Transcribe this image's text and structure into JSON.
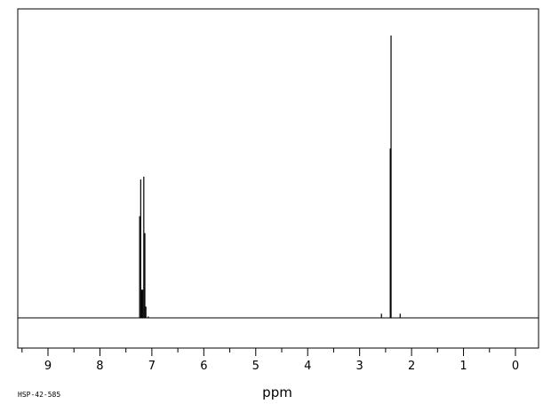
{
  "chart_data": {
    "type": "line",
    "title": "",
    "xlabel": "ppm",
    "ylabel": "",
    "xlim": [
      9.6,
      -0.45
    ],
    "ylim": [
      0,
      100
    ],
    "x_reversed": true,
    "grid": false,
    "ticks": [
      9,
      8,
      7,
      6,
      5,
      4,
      3,
      2,
      1,
      0
    ],
    "tick_labels": [
      "9",
      "8",
      "7",
      "6",
      "5",
      "4",
      "3",
      "2",
      "1",
      "0"
    ],
    "minor_ticks": [
      9.5,
      8.5,
      7.5,
      6.5,
      5.5,
      4.5,
      3.5,
      2.5,
      1.5,
      0.5,
      -0.5
    ],
    "peaks": [
      {
        "shift": 7.235,
        "intensity": 36
      },
      {
        "shift": 7.215,
        "intensity": 49
      },
      {
        "shift": 7.195,
        "intensity": 10
      },
      {
        "shift": 7.175,
        "intensity": 10
      },
      {
        "shift": 7.155,
        "intensity": 50
      },
      {
        "shift": 7.135,
        "intensity": 30
      },
      {
        "shift": 7.115,
        "intensity": 4
      },
      {
        "shift": 7.07,
        "intensity": 0.5
      },
      {
        "shift": 2.58,
        "intensity": 1.5
      },
      {
        "shift": 2.41,
        "intensity": 60
      },
      {
        "shift": 2.395,
        "intensity": 100
      },
      {
        "shift": 2.22,
        "intensity": 1.5
      }
    ],
    "spectrum_id": "HSP-42-585"
  }
}
